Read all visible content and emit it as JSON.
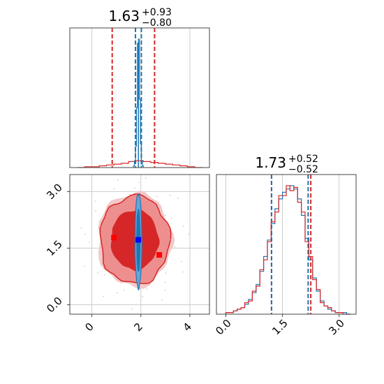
{
  "chart_data": [
    {
      "type": "histogram",
      "panel": "top-left",
      "title": "1.63",
      "title_err_plus": "+0.93",
      "title_err_minus": "−0.80",
      "x_range": [
        -0.9,
        4.8
      ],
      "grid": true,
      "series": [
        {
          "name": "",
          "color": "#d62728",
          "bin_edges": [
            -0.6,
            -0.3,
            0.0,
            0.3,
            0.6,
            0.9,
            1.2,
            1.5,
            1.8,
            2.1,
            2.4,
            2.7,
            3.0,
            3.3,
            3.6,
            3.9,
            4.2,
            4.5
          ],
          "counts": [
            0,
            1,
            1,
            2,
            3,
            4,
            5,
            7,
            8,
            7,
            6,
            5,
            4,
            3,
            2,
            1,
            0
          ]
        },
        {
          "name": "",
          "color": "#1f77b4",
          "bin_edges": [
            1.7,
            1.74,
            1.78,
            1.82,
            1.86,
            1.9,
            1.94,
            1.98,
            2.02,
            2.06,
            2.1
          ],
          "counts": [
            2,
            8,
            25,
            70,
            145,
            150,
            80,
            28,
            8,
            2
          ]
        }
      ],
      "quantile_lines": [
        {
          "color": "#d62728",
          "values": [
            0.83,
            2.56
          ]
        },
        {
          "color": "#1f77b4",
          "values": [
            1.78,
            2.02
          ]
        }
      ]
    },
    {
      "type": "contour",
      "panel": "bottom-left",
      "x_range": [
        -0.9,
        4.8
      ],
      "y_range": [
        -0.25,
        3.45
      ],
      "x_ticks": [
        "0",
        "2",
        "4"
      ],
      "y_ticks": [
        "0.0",
        "1.5",
        "3.0"
      ],
      "grid": true,
      "series": [
        {
          "name": "",
          "color": "#d62728",
          "center": [
            1.75,
            1.72
          ],
          "levels_sigma": [
            0.9,
            1.6
          ]
        },
        {
          "name": "",
          "color": "#1f77b4",
          "center": [
            1.9,
            1.7
          ],
          "levels_sigma": [
            0.05,
            0.12
          ]
        }
      ],
      "markers": [
        {
          "color": "#ff0000",
          "x": 0.9,
          "y": 1.78
        },
        {
          "color": "#0000ff",
          "x": 1.9,
          "y": 1.72
        },
        {
          "color": "#ff0000",
          "x": 2.75,
          "y": 1.32
        }
      ]
    },
    {
      "type": "histogram",
      "panel": "bottom-right",
      "title": "1.73",
      "title_err_plus": "+0.52",
      "title_err_minus": "−0.52",
      "x_range": [
        -0.25,
        3.45
      ],
      "x_ticks": [
        "0.0",
        "1.5",
        "3.0"
      ],
      "grid": true,
      "series": [
        {
          "name": "",
          "color": "#1f77b4",
          "bin_edges": [
            0.0,
            0.1,
            0.2,
            0.3,
            0.4,
            0.5,
            0.6,
            0.7,
            0.8,
            0.9,
            1.0,
            1.1,
            1.2,
            1.3,
            1.4,
            1.5,
            1.6,
            1.7,
            1.8,
            1.9,
            2.0,
            2.1,
            2.2,
            2.3,
            2.4,
            2.5,
            2.6,
            2.7,
            2.8,
            2.9,
            3.0,
            3.1,
            3.2,
            3.3
          ],
          "counts": [
            1,
            1,
            2,
            3,
            4,
            6,
            9,
            13,
            18,
            26,
            35,
            45,
            55,
            64,
            70,
            74,
            76,
            78,
            76,
            70,
            60,
            46,
            33,
            22,
            14,
            8,
            5,
            3,
            2,
            1,
            1,
            1,
            0
          ]
        },
        {
          "name": "",
          "color": "#d62728",
          "bin_edges": [
            0.0,
            0.1,
            0.2,
            0.3,
            0.4,
            0.5,
            0.6,
            0.7,
            0.8,
            0.9,
            1.0,
            1.1,
            1.2,
            1.3,
            1.4,
            1.5,
            1.6,
            1.7,
            1.8,
            1.9,
            2.0,
            2.1,
            2.2,
            2.3,
            2.4,
            2.5,
            2.6,
            2.7,
            2.8,
            2.9,
            3.0,
            3.1,
            3.2,
            3.3
          ],
          "counts": [
            1,
            1,
            2,
            3,
            4,
            7,
            8,
            14,
            17,
            27,
            33,
            44,
            56,
            62,
            72,
            72,
            78,
            75,
            77,
            68,
            62,
            44,
            35,
            21,
            15,
            7,
            5,
            4,
            2,
            1,
            1,
            0,
            0
          ]
        }
      ],
      "quantile_lines": [
        {
          "color": "#d62728",
          "values": [
            1.21,
            2.25
          ]
        },
        {
          "color": "#1f77b4",
          "values": [
            1.21,
            2.18
          ]
        }
      ]
    }
  ]
}
